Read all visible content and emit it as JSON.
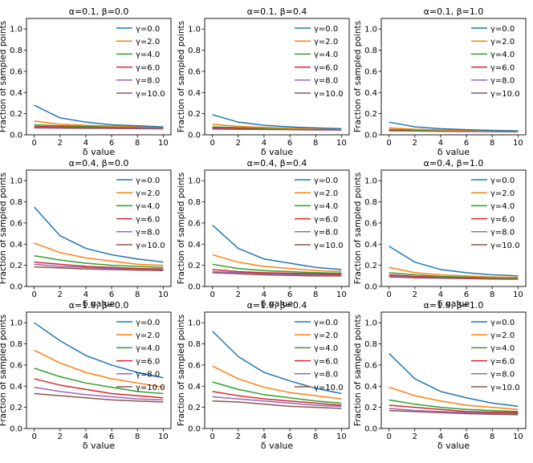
{
  "figure": {
    "series_names": [
      "γ=0.0",
      "γ=2.0",
      "γ=4.0",
      "γ=6.0",
      "γ=8.0",
      "γ=10.0"
    ],
    "series_colors": [
      "#1f77b4",
      "#ff7f0e",
      "#2ca02c",
      "#d62728",
      "#9467bd",
      "#8c564b"
    ]
  },
  "chart_data": [
    {
      "type": "line",
      "title": "α=0.1, β=0.0",
      "xlabel": "δ value",
      "ylabel": "Fraction of sampled points",
      "x": [
        0,
        2,
        4,
        6,
        8,
        10
      ],
      "xticks": [
        "0",
        "2",
        "4",
        "6",
        "8",
        "10"
      ],
      "yticks": [
        "0.0",
        "0.2",
        "0.4",
        "0.6",
        "0.8",
        "1.0"
      ],
      "ylim": [
        0,
        1.1
      ],
      "legend": "top-right",
      "series": [
        {
          "name": "γ=0.0",
          "values": [
            0.28,
            0.16,
            0.12,
            0.095,
            0.085,
            0.075
          ]
        },
        {
          "name": "γ=2.0",
          "values": [
            0.13,
            0.1,
            0.09,
            0.082,
            0.078,
            0.072
          ]
        },
        {
          "name": "γ=4.0",
          "values": [
            0.095,
            0.085,
            0.08,
            0.075,
            0.072,
            0.07
          ]
        },
        {
          "name": "γ=6.0",
          "values": [
            0.08,
            0.075,
            0.072,
            0.07,
            0.068,
            0.066
          ]
        },
        {
          "name": "γ=8.0",
          "values": [
            0.07,
            0.068,
            0.066,
            0.064,
            0.062,
            0.06
          ]
        },
        {
          "name": "γ=10.0",
          "values": [
            0.065,
            0.063,
            0.061,
            0.06,
            0.058,
            0.056
          ]
        }
      ]
    },
    {
      "type": "line",
      "title": "α=0.1, β=0.4",
      "xlabel": "δ value",
      "ylabel": "Fraction of sampled points",
      "x": [
        0,
        2,
        4,
        6,
        8,
        10
      ],
      "xticks": [
        "0",
        "2",
        "4",
        "6",
        "8",
        "10"
      ],
      "yticks": [
        "0.0",
        "0.2",
        "0.4",
        "0.6",
        "0.8",
        "1.0"
      ],
      "ylim": [
        0,
        1.1
      ],
      "legend": "top-right",
      "series": [
        {
          "name": "γ=0.0",
          "values": [
            0.19,
            0.12,
            0.09,
            0.075,
            0.065,
            0.058
          ]
        },
        {
          "name": "γ=2.0",
          "values": [
            0.1,
            0.08,
            0.07,
            0.062,
            0.058,
            0.054
          ]
        },
        {
          "name": "γ=4.0",
          "values": [
            0.075,
            0.068,
            0.062,
            0.058,
            0.055,
            0.052
          ]
        },
        {
          "name": "γ=6.0",
          "values": [
            0.065,
            0.06,
            0.057,
            0.054,
            0.052,
            0.05
          ]
        },
        {
          "name": "γ=8.0",
          "values": [
            0.058,
            0.055,
            0.053,
            0.05,
            0.049,
            0.047
          ]
        },
        {
          "name": "γ=10.0",
          "values": [
            0.054,
            0.052,
            0.05,
            0.048,
            0.046,
            0.045
          ]
        }
      ]
    },
    {
      "type": "line",
      "title": "α=0.1, β=1.0",
      "xlabel": "δ value",
      "ylabel": "Fraction of sampled points",
      "x": [
        0,
        2,
        4,
        6,
        8,
        10
      ],
      "xticks": [
        "0",
        "2",
        "4",
        "6",
        "8",
        "10"
      ],
      "yticks": [
        "0.0",
        "0.2",
        "0.4",
        "0.6",
        "0.8",
        "1.0"
      ],
      "ylim": [
        0,
        1.1
      ],
      "legend": "top-right",
      "series": [
        {
          "name": "γ=0.0",
          "values": [
            0.12,
            0.075,
            0.058,
            0.048,
            0.042,
            0.038
          ]
        },
        {
          "name": "γ=2.0",
          "values": [
            0.065,
            0.052,
            0.046,
            0.041,
            0.038,
            0.035
          ]
        },
        {
          "name": "γ=4.0",
          "values": [
            0.05,
            0.045,
            0.041,
            0.038,
            0.035,
            0.033
          ]
        },
        {
          "name": "γ=6.0",
          "values": [
            0.045,
            0.041,
            0.038,
            0.035,
            0.033,
            0.031
          ]
        },
        {
          "name": "γ=8.0",
          "values": [
            0.041,
            0.038,
            0.035,
            0.033,
            0.031,
            0.03
          ]
        },
        {
          "name": "γ=10.0",
          "values": [
            0.038,
            0.036,
            0.033,
            0.031,
            0.03,
            0.029
          ]
        }
      ]
    },
    {
      "type": "line",
      "title": "α=0.4, β=0.0",
      "xlabel": "δ value",
      "ylabel": "Fraction of sampled points",
      "x": [
        0,
        2,
        4,
        6,
        8,
        10
      ],
      "xticks": [
        "0",
        "2",
        "4",
        "6",
        "8",
        "10"
      ],
      "yticks": [
        "0.0",
        "0.2",
        "0.4",
        "0.6",
        "0.8",
        "1.0"
      ],
      "ylim": [
        0,
        1.1
      ],
      "legend": "top-right",
      "series": [
        {
          "name": "γ=0.0",
          "values": [
            0.75,
            0.48,
            0.36,
            0.3,
            0.26,
            0.23
          ]
        },
        {
          "name": "γ=2.0",
          "values": [
            0.41,
            0.32,
            0.27,
            0.24,
            0.21,
            0.2
          ]
        },
        {
          "name": "γ=4.0",
          "values": [
            0.29,
            0.25,
            0.22,
            0.2,
            0.19,
            0.18
          ]
        },
        {
          "name": "γ=6.0",
          "values": [
            0.23,
            0.21,
            0.19,
            0.18,
            0.17,
            0.165
          ]
        },
        {
          "name": "γ=8.0",
          "values": [
            0.21,
            0.19,
            0.18,
            0.17,
            0.165,
            0.16
          ]
        },
        {
          "name": "γ=10.0",
          "values": [
            0.185,
            0.175,
            0.165,
            0.16,
            0.155,
            0.15
          ]
        }
      ]
    },
    {
      "type": "line",
      "title": "α=0.4, β=0.4",
      "xlabel": "δ value",
      "ylabel": "Fraction of sampled points",
      "x": [
        0,
        2,
        4,
        6,
        8,
        10
      ],
      "xticks": [
        "0",
        "2",
        "4",
        "6",
        "8",
        "10"
      ],
      "yticks": [
        "0.0",
        "0.2",
        "0.4",
        "0.6",
        "0.8",
        "1.0"
      ],
      "ylim": [
        0,
        1.1
      ],
      "legend": "top-right",
      "series": [
        {
          "name": "γ=0.0",
          "values": [
            0.58,
            0.36,
            0.26,
            0.22,
            0.18,
            0.16
          ]
        },
        {
          "name": "γ=2.0",
          "values": [
            0.3,
            0.23,
            0.19,
            0.17,
            0.15,
            0.14
          ]
        },
        {
          "name": "γ=4.0",
          "values": [
            0.21,
            0.17,
            0.15,
            0.14,
            0.13,
            0.125
          ]
        },
        {
          "name": "γ=6.0",
          "values": [
            0.16,
            0.14,
            0.13,
            0.125,
            0.12,
            0.115
          ]
        },
        {
          "name": "γ=8.0",
          "values": [
            0.14,
            0.13,
            0.12,
            0.115,
            0.11,
            0.105
          ]
        },
        {
          "name": "γ=10.0",
          "values": [
            0.13,
            0.12,
            0.11,
            0.105,
            0.1,
            0.1
          ]
        }
      ]
    },
    {
      "type": "line",
      "title": "α=0.4, β=1.0",
      "xlabel": "δ value",
      "ylabel": "Fraction of sampled points",
      "x": [
        0,
        2,
        4,
        6,
        8,
        10
      ],
      "xticks": [
        "0",
        "2",
        "4",
        "6",
        "8",
        "10"
      ],
      "yticks": [
        "0.0",
        "0.2",
        "0.4",
        "0.6",
        "0.8",
        "1.0"
      ],
      "ylim": [
        0,
        1.1
      ],
      "legend": "top-right",
      "series": [
        {
          "name": "γ=0.0",
          "values": [
            0.38,
            0.23,
            0.16,
            0.13,
            0.11,
            0.1
          ]
        },
        {
          "name": "γ=2.0",
          "values": [
            0.18,
            0.13,
            0.11,
            0.1,
            0.09,
            0.085
          ]
        },
        {
          "name": "γ=4.0",
          "values": [
            0.13,
            0.11,
            0.095,
            0.088,
            0.082,
            0.078
          ]
        },
        {
          "name": "γ=6.0",
          "values": [
            0.11,
            0.095,
            0.088,
            0.082,
            0.078,
            0.074
          ]
        },
        {
          "name": "γ=8.0",
          "values": [
            0.1,
            0.088,
            0.082,
            0.078,
            0.074,
            0.07
          ]
        },
        {
          "name": "γ=10.0",
          "values": [
            0.09,
            0.082,
            0.078,
            0.074,
            0.07,
            0.068
          ]
        }
      ]
    },
    {
      "type": "line",
      "title": "α=1.0, β=0.0",
      "xlabel": "δ value",
      "ylabel": "Fraction of sampled points",
      "x": [
        0,
        2,
        4,
        6,
        8,
        10
      ],
      "xticks": [
        "0",
        "2",
        "4",
        "6",
        "8",
        "10"
      ],
      "yticks": [
        "0.0",
        "0.2",
        "0.4",
        "0.6",
        "0.8",
        "1.0"
      ],
      "ylim": [
        0,
        1.1
      ],
      "legend": "top-right",
      "series": [
        {
          "name": "γ=0.0",
          "values": [
            1.0,
            0.83,
            0.69,
            0.6,
            0.53,
            0.48
          ]
        },
        {
          "name": "γ=2.0",
          "values": [
            0.74,
            0.62,
            0.53,
            0.47,
            0.43,
            0.39
          ]
        },
        {
          "name": "γ=4.0",
          "values": [
            0.57,
            0.49,
            0.43,
            0.39,
            0.35,
            0.33
          ]
        },
        {
          "name": "γ=6.0",
          "values": [
            0.47,
            0.41,
            0.37,
            0.33,
            0.31,
            0.29
          ]
        },
        {
          "name": "γ=8.0",
          "values": [
            0.39,
            0.35,
            0.32,
            0.3,
            0.28,
            0.27
          ]
        },
        {
          "name": "γ=10.0",
          "values": [
            0.33,
            0.31,
            0.29,
            0.27,
            0.26,
            0.25
          ]
        }
      ]
    },
    {
      "type": "line",
      "title": "α=1.0, β=0.4",
      "xlabel": "δ value",
      "ylabel": "Fraction of sampled points",
      "x": [
        0,
        2,
        4,
        6,
        8,
        10
      ],
      "xticks": [
        "0",
        "2",
        "4",
        "6",
        "8",
        "10"
      ],
      "yticks": [
        "0.0",
        "0.2",
        "0.4",
        "0.6",
        "0.8",
        "1.0"
      ],
      "ylim": [
        0,
        1.1
      ],
      "legend": "top-right",
      "series": [
        {
          "name": "γ=0.0",
          "values": [
            0.92,
            0.68,
            0.53,
            0.45,
            0.38,
            0.33
          ]
        },
        {
          "name": "γ=2.0",
          "values": [
            0.59,
            0.47,
            0.39,
            0.34,
            0.31,
            0.28
          ]
        },
        {
          "name": "γ=4.0",
          "values": [
            0.44,
            0.37,
            0.32,
            0.29,
            0.26,
            0.24
          ]
        },
        {
          "name": "γ=6.0",
          "values": [
            0.35,
            0.31,
            0.28,
            0.26,
            0.24,
            0.22
          ]
        },
        {
          "name": "γ=8.0",
          "values": [
            0.3,
            0.28,
            0.26,
            0.24,
            0.22,
            0.21
          ]
        },
        {
          "name": "γ=10.0",
          "values": [
            0.26,
            0.25,
            0.23,
            0.21,
            0.2,
            0.19
          ]
        }
      ]
    },
    {
      "type": "line",
      "title": "α=1.0, β=1.0",
      "xlabel": "δ value",
      "ylabel": "Fraction of sampled points",
      "x": [
        0,
        2,
        4,
        6,
        8,
        10
      ],
      "xticks": [
        "0",
        "2",
        "4",
        "6",
        "8",
        "10"
      ],
      "yticks": [
        "0.0",
        "0.2",
        "0.4",
        "0.6",
        "0.8",
        "1.0"
      ],
      "ylim": [
        0,
        1.1
      ],
      "legend": "top-right",
      "series": [
        {
          "name": "γ=0.0",
          "values": [
            0.71,
            0.47,
            0.35,
            0.29,
            0.24,
            0.21
          ]
        },
        {
          "name": "γ=2.0",
          "values": [
            0.39,
            0.31,
            0.26,
            0.22,
            0.2,
            0.18
          ]
        },
        {
          "name": "γ=4.0",
          "values": [
            0.27,
            0.23,
            0.2,
            0.18,
            0.17,
            0.16
          ]
        },
        {
          "name": "γ=6.0",
          "values": [
            0.22,
            0.2,
            0.18,
            0.16,
            0.155,
            0.15
          ]
        },
        {
          "name": "γ=8.0",
          "values": [
            0.19,
            0.17,
            0.16,
            0.15,
            0.145,
            0.14
          ]
        },
        {
          "name": "γ=10.0",
          "values": [
            0.17,
            0.16,
            0.15,
            0.14,
            0.135,
            0.13
          ]
        }
      ]
    }
  ]
}
